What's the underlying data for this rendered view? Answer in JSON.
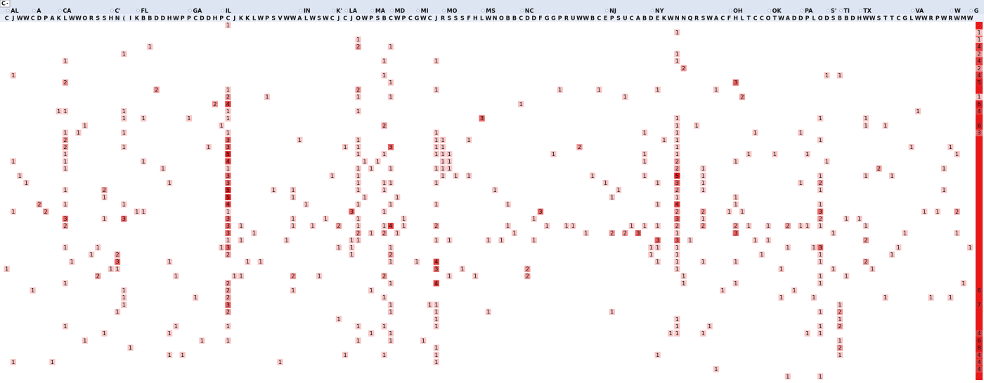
{
  "header": {
    "corner": "C",
    "states": [
      [
        "AL",
        1
      ],
      [
        "A",
        5
      ],
      [
        "CA",
        9
      ],
      [
        "C'",
        17
      ],
      [
        "FL",
        21
      ],
      [
        "GA",
        29
      ],
      [
        "IL",
        34
      ],
      [
        "IN",
        46
      ],
      [
        "K'",
        51
      ],
      [
        "LA",
        53
      ],
      [
        "MA",
        57
      ],
      [
        "MD",
        60
      ],
      [
        "MI",
        64
      ],
      [
        "MO",
        68
      ],
      [
        "MS",
        74
      ],
      [
        "NC",
        80
      ],
      [
        "NJ",
        93
      ],
      [
        "NY",
        100
      ],
      [
        "OH",
        112
      ],
      [
        "OK",
        118
      ],
      [
        "PA",
        123
      ],
      [
        "S'",
        127
      ],
      [
        "TI",
        129
      ],
      [
        "TX",
        132
      ],
      [
        "VA",
        140
      ],
      [
        "W",
        146
      ],
      [
        "G",
        149
      ]
    ],
    "column_letters": "CJWWCDPAKLWWORSSHN(IKBBDDHWPPCDDHPCJKKLWPSVWWALWSWCJCJOWPSBCWPCGWCJRSSSFHLWNOBBCDDFGGPRUWWBCEPSUCABDEKWNNQRSWACFHLTCCOTWADDPLODSBBDHWWSTTCGLWWRPWRWMW"
  },
  "colors": [
    "#ffffff",
    "#f8c6c6",
    "#f29c9c",
    "#ec6464",
    "#e63c3c",
    "#e01e1e",
    "#e01e1e",
    "#e01e1e",
    "#e01e1e"
  ],
  "cells": [
    [
      0,
      34,
      1
    ],
    [
      1,
      103,
      1
    ],
    [
      2,
      54,
      1
    ],
    [
      3,
      22,
      1
    ],
    [
      3,
      54,
      2
    ],
    [
      3,
      59,
      1
    ],
    [
      4,
      18,
      1
    ],
    [
      4,
      103,
      1
    ],
    [
      5,
      9,
      1
    ],
    [
      5,
      58,
      1
    ],
    [
      5,
      66,
      1
    ],
    [
      5,
      103,
      1
    ],
    [
      6,
      104,
      2
    ],
    [
      7,
      1,
      1
    ],
    [
      7,
      58,
      1
    ],
    [
      7,
      126,
      1
    ],
    [
      7,
      128,
      1
    ],
    [
      8,
      9,
      2
    ],
    [
      8,
      59,
      1
    ],
    [
      8,
      112,
      3
    ],
    [
      9,
      23,
      2
    ],
    [
      9,
      34,
      1
    ],
    [
      9,
      54,
      2
    ],
    [
      9,
      66,
      1
    ],
    [
      9,
      85,
      1
    ],
    [
      9,
      91,
      1
    ],
    [
      9,
      100,
      1
    ],
    [
      9,
      109,
      1
    ],
    [
      10,
      34,
      2
    ],
    [
      10,
      40,
      1
    ],
    [
      10,
      54,
      1
    ],
    [
      10,
      59,
      1
    ],
    [
      10,
      95,
      1
    ],
    [
      10,
      113,
      2
    ],
    [
      11,
      32,
      2
    ],
    [
      11,
      34,
      4
    ],
    [
      11,
      79,
      1
    ],
    [
      12,
      8,
      1
    ],
    [
      12,
      9,
      1
    ],
    [
      12,
      18,
      1
    ],
    [
      12,
      34,
      1
    ],
    [
      12,
      54,
      1
    ],
    [
      12,
      140,
      1
    ],
    [
      13,
      18,
      1
    ],
    [
      13,
      21,
      1
    ],
    [
      13,
      28,
      1
    ],
    [
      13,
      34,
      1
    ],
    [
      13,
      73,
      3
    ],
    [
      13,
      103,
      1
    ],
    [
      13,
      125,
      1
    ],
    [
      13,
      132,
      1
    ],
    [
      14,
      12,
      1
    ],
    [
      14,
      33,
      1
    ],
    [
      14,
      58,
      2
    ],
    [
      14,
      103,
      1
    ],
    [
      14,
      106,
      1
    ],
    [
      14,
      132,
      1
    ],
    [
      14,
      135,
      1
    ],
    [
      15,
      9,
      1
    ],
    [
      15,
      11,
      1
    ],
    [
      15,
      18,
      1
    ],
    [
      15,
      34,
      1
    ],
    [
      15,
      66,
      1
    ],
    [
      15,
      98,
      1
    ],
    [
      15,
      103,
      1
    ],
    [
      15,
      115,
      1
    ],
    [
      15,
      122,
      1
    ],
    [
      16,
      9,
      2
    ],
    [
      16,
      34,
      3
    ],
    [
      16,
      45,
      1
    ],
    [
      16,
      54,
      1
    ],
    [
      16,
      66,
      1
    ],
    [
      16,
      67,
      1
    ],
    [
      16,
      71,
      1
    ],
    [
      16,
      101,
      1
    ],
    [
      16,
      103,
      1
    ],
    [
      16,
      125,
      1
    ],
    [
      17,
      9,
      2
    ],
    [
      17,
      18,
      1
    ],
    [
      17,
      31,
      1
    ],
    [
      17,
      34,
      3
    ],
    [
      17,
      52,
      1
    ],
    [
      17,
      54,
      1
    ],
    [
      17,
      59,
      3
    ],
    [
      17,
      66,
      1
    ],
    [
      17,
      67,
      1
    ],
    [
      17,
      88,
      2
    ],
    [
      17,
      103,
      1
    ],
    [
      17,
      139,
      1
    ],
    [
      17,
      145,
      1
    ],
    [
      18,
      9,
      1
    ],
    [
      18,
      34,
      5
    ],
    [
      18,
      54,
      1
    ],
    [
      18,
      58,
      1
    ],
    [
      18,
      66,
      1
    ],
    [
      18,
      67,
      1
    ],
    [
      18,
      68,
      1
    ],
    [
      18,
      84,
      1
    ],
    [
      18,
      98,
      1
    ],
    [
      18,
      103,
      1
    ],
    [
      18,
      114,
      1
    ],
    [
      18,
      118,
      1
    ],
    [
      18,
      123,
      1
    ],
    [
      18,
      146,
      1
    ],
    [
      19,
      1,
      1
    ],
    [
      19,
      9,
      1
    ],
    [
      19,
      21,
      1
    ],
    [
      19,
      34,
      4
    ],
    [
      19,
      55,
      1
    ],
    [
      19,
      57,
      1
    ],
    [
      19,
      67,
      1
    ],
    [
      19,
      68,
      1
    ],
    [
      19,
      98,
      1
    ],
    [
      19,
      103,
      2
    ],
    [
      19,
      112,
      1
    ],
    [
      19,
      126,
      1
    ],
    [
      20,
      9,
      1
    ],
    [
      20,
      24,
      1
    ],
    [
      20,
      34,
      1
    ],
    [
      20,
      54,
      1
    ],
    [
      20,
      56,
      1
    ],
    [
      20,
      59,
      1
    ],
    [
      20,
      66,
      1
    ],
    [
      20,
      67,
      1
    ],
    [
      20,
      68,
      1
    ],
    [
      20,
      103,
      2
    ],
    [
      20,
      107,
      1
    ],
    [
      20,
      134,
      2
    ],
    [
      20,
      144,
      1
    ],
    [
      21,
      2,
      1
    ],
    [
      21,
      34,
      3
    ],
    [
      21,
      50,
      1
    ],
    [
      21,
      54,
      1
    ],
    [
      21,
      67,
      1
    ],
    [
      21,
      69,
      1
    ],
    [
      21,
      71,
      1
    ],
    [
      21,
      90,
      1
    ],
    [
      21,
      98,
      1
    ],
    [
      21,
      103,
      5
    ],
    [
      21,
      107,
      1
    ],
    [
      21,
      125,
      1
    ],
    [
      21,
      132,
      1
    ],
    [
      21,
      136,
      1
    ],
    [
      22,
      3,
      1
    ],
    [
      22,
      25,
      1
    ],
    [
      22,
      34,
      3
    ],
    [
      22,
      54,
      1
    ],
    [
      22,
      58,
      1
    ],
    [
      22,
      59,
      1
    ],
    [
      22,
      66,
      1
    ],
    [
      22,
      92,
      1
    ],
    [
      22,
      100,
      1
    ],
    [
      22,
      103,
      3
    ],
    [
      22,
      107,
      1
    ],
    [
      22,
      122,
      1
    ],
    [
      22,
      125,
      2
    ],
    [
      23,
      9,
      1
    ],
    [
      23,
      15,
      2
    ],
    [
      23,
      34,
      5
    ],
    [
      23,
      41,
      1
    ],
    [
      23,
      44,
      1
    ],
    [
      23,
      54,
      1
    ],
    [
      23,
      58,
      1
    ],
    [
      23,
      75,
      1
    ],
    [
      23,
      94,
      1
    ],
    [
      23,
      103,
      2
    ],
    [
      23,
      107,
      1
    ],
    [
      23,
      125,
      1
    ],
    [
      23,
      144,
      1
    ],
    [
      24,
      15,
      1
    ],
    [
      24,
      34,
      5
    ],
    [
      24,
      44,
      1
    ],
    [
      24,
      55,
      1
    ],
    [
      24,
      60,
      1
    ],
    [
      24,
      93,
      1
    ],
    [
      24,
      103,
      1
    ],
    [
      24,
      112,
      1
    ],
    [
      25,
      5,
      2
    ],
    [
      25,
      9,
      1
    ],
    [
      25,
      18,
      1
    ],
    [
      25,
      34,
      4
    ],
    [
      25,
      46,
      1
    ],
    [
      25,
      54,
      1
    ],
    [
      25,
      59,
      1
    ],
    [
      25,
      66,
      1
    ],
    [
      25,
      77,
      1
    ],
    [
      25,
      100,
      1
    ],
    [
      25,
      103,
      4
    ],
    [
      25,
      112,
      1
    ],
    [
      25,
      125,
      1
    ],
    [
      26,
      1,
      1
    ],
    [
      26,
      6,
      2
    ],
    [
      26,
      20,
      1
    ],
    [
      26,
      21,
      1
    ],
    [
      26,
      34,
      1
    ],
    [
      26,
      53,
      3
    ],
    [
      26,
      58,
      1
    ],
    [
      26,
      82,
      3
    ],
    [
      26,
      103,
      2
    ],
    [
      26,
      107,
      2
    ],
    [
      26,
      111,
      1
    ],
    [
      26,
      113,
      1
    ],
    [
      26,
      125,
      3
    ],
    [
      26,
      141,
      1
    ],
    [
      26,
      143,
      1
    ],
    [
      26,
      146,
      2
    ],
    [
      27,
      9,
      3
    ],
    [
      27,
      15,
      1
    ],
    [
      27,
      18,
      3
    ],
    [
      27,
      34,
      3
    ],
    [
      27,
      44,
      1
    ],
    [
      27,
      49,
      1
    ],
    [
      27,
      54,
      1
    ],
    [
      27,
      61,
      1
    ],
    [
      27,
      81,
      1
    ],
    [
      27,
      103,
      3
    ],
    [
      27,
      107,
      1
    ],
    [
      27,
      125,
      2
    ],
    [
      27,
      129,
      1
    ],
    [
      27,
      131,
      1
    ],
    [
      28,
      9,
      2
    ],
    [
      28,
      34,
      3
    ],
    [
      28,
      36,
      1
    ],
    [
      28,
      44,
      1
    ],
    [
      28,
      47,
      1
    ],
    [
      28,
      51,
      2
    ],
    [
      28,
      54,
      1
    ],
    [
      28,
      58,
      1
    ],
    [
      28,
      59,
      4
    ],
    [
      28,
      61,
      1
    ],
    [
      28,
      66,
      2
    ],
    [
      28,
      77,
      1
    ],
    [
      28,
      83,
      1
    ],
    [
      28,
      86,
      1
    ],
    [
      28,
      87,
      1
    ],
    [
      28,
      96,
      1
    ],
    [
      28,
      98,
      1
    ],
    [
      28,
      100,
      1
    ],
    [
      28,
      103,
      2
    ],
    [
      28,
      107,
      2
    ],
    [
      28,
      112,
      2
    ],
    [
      28,
      114,
      1
    ],
    [
      28,
      117,
      1
    ],
    [
      28,
      120,
      2
    ],
    [
      28,
      122,
      1
    ],
    [
      28,
      123,
      1
    ],
    [
      28,
      125,
      1
    ],
    [
      28,
      132,
      1
    ],
    [
      29,
      34,
      3
    ],
    [
      29,
      38,
      1
    ],
    [
      29,
      54,
      2
    ],
    [
      29,
      56,
      1
    ],
    [
      29,
      58,
      2
    ],
    [
      29,
      60,
      1
    ],
    [
      29,
      78,
      1
    ],
    [
      29,
      89,
      1
    ],
    [
      29,
      93,
      2
    ],
    [
      29,
      95,
      2
    ],
    [
      29,
      97,
      3
    ],
    [
      29,
      103,
      1
    ],
    [
      29,
      112,
      3
    ],
    [
      29,
      127,
      1
    ],
    [
      29,
      138,
      1
    ],
    [
      29,
      146,
      1
    ],
    [
      30,
      34,
      1
    ],
    [
      30,
      36,
      1
    ],
    [
      30,
      43,
      1
    ],
    [
      30,
      53,
      1
    ],
    [
      30,
      54,
      1
    ],
    [
      30,
      66,
      1
    ],
    [
      30,
      68,
      1
    ],
    [
      30,
      74,
      1
    ],
    [
      30,
      76,
      1
    ],
    [
      30,
      81,
      1
    ],
    [
      30,
      100,
      3
    ],
    [
      30,
      103,
      3
    ],
    [
      30,
      105,
      1
    ],
    [
      30,
      115,
      1
    ],
    [
      30,
      117,
      1
    ],
    [
      30,
      132,
      2
    ],
    [
      31,
      9,
      1
    ],
    [
      31,
      14,
      1
    ],
    [
      31,
      33,
      1
    ],
    [
      31,
      34,
      3
    ],
    [
      31,
      51,
      1
    ],
    [
      31,
      53,
      1
    ],
    [
      31,
      59,
      1
    ],
    [
      31,
      99,
      1
    ],
    [
      31,
      100,
      1
    ],
    [
      31,
      103,
      1
    ],
    [
      31,
      120,
      1
    ],
    [
      31,
      124,
      1
    ],
    [
      31,
      125,
      3
    ],
    [
      31,
      137,
      1
    ],
    [
      31,
      148,
      1
    ],
    [
      32,
      13,
      1
    ],
    [
      32,
      17,
      2
    ],
    [
      32,
      34,
      2
    ],
    [
      32,
      53,
      1
    ],
    [
      32,
      59,
      2
    ],
    [
      32,
      99,
      1
    ],
    [
      32,
      103,
      1
    ],
    [
      32,
      116,
      1
    ],
    [
      32,
      125,
      1
    ],
    [
      32,
      136,
      1
    ],
    [
      33,
      10,
      1
    ],
    [
      33,
      17,
      3
    ],
    [
      33,
      25,
      1
    ],
    [
      33,
      37,
      1
    ],
    [
      33,
      39,
      1
    ],
    [
      33,
      59,
      1
    ],
    [
      33,
      63,
      1
    ],
    [
      33,
      66,
      4
    ],
    [
      33,
      100,
      1
    ],
    [
      33,
      103,
      1
    ],
    [
      33,
      107,
      1
    ],
    [
      33,
      112,
      1
    ],
    [
      33,
      125,
      1
    ],
    [
      33,
      132,
      2
    ],
    [
      34,
      0,
      1
    ],
    [
      34,
      16,
      1
    ],
    [
      34,
      17,
      1
    ],
    [
      34,
      66,
      3
    ],
    [
      34,
      70,
      1
    ],
    [
      34,
      80,
      2
    ],
    [
      34,
      103,
      1
    ],
    [
      34,
      119,
      1
    ],
    [
      34,
      127,
      1
    ],
    [
      34,
      133,
      1
    ],
    [
      35,
      14,
      2
    ],
    [
      35,
      26,
      1
    ],
    [
      35,
      35,
      1
    ],
    [
      35,
      36,
      1
    ],
    [
      35,
      44,
      2
    ],
    [
      35,
      48,
      1
    ],
    [
      35,
      58,
      2
    ],
    [
      35,
      68,
      1
    ],
    [
      35,
      72,
      1
    ],
    [
      35,
      80,
      2
    ],
    [
      35,
      104,
      1
    ],
    [
      35,
      125,
      1
    ],
    [
      35,
      129,
      1
    ],
    [
      36,
      9,
      1
    ],
    [
      36,
      34,
      2
    ],
    [
      36,
      59,
      1
    ],
    [
      36,
      66,
      4
    ],
    [
      36,
      104,
      1
    ],
    [
      36,
      112,
      1
    ],
    [
      36,
      125,
      1
    ],
    [
      36,
      147,
      1
    ],
    [
      37,
      4,
      1
    ],
    [
      37,
      18,
      1
    ],
    [
      37,
      34,
      2
    ],
    [
      37,
      44,
      1
    ],
    [
      37,
      56,
      1
    ],
    [
      37,
      110,
      1
    ],
    [
      37,
      121,
      1
    ],
    [
      38,
      18,
      1
    ],
    [
      38,
      29,
      1
    ],
    [
      38,
      34,
      2
    ],
    [
      38,
      58,
      1
    ],
    [
      38,
      119,
      1
    ],
    [
      38,
      124,
      1
    ],
    [
      38,
      135,
      1
    ],
    [
      38,
      142,
      1
    ],
    [
      38,
      145,
      1
    ],
    [
      39,
      18,
      1
    ],
    [
      39,
      34,
      3
    ],
    [
      39,
      59,
      1
    ],
    [
      39,
      65,
      1
    ],
    [
      39,
      66,
      1
    ],
    [
      39,
      128,
      1
    ],
    [
      40,
      17,
      1
    ],
    [
      40,
      34,
      2
    ],
    [
      40,
      59,
      1
    ],
    [
      40,
      66,
      1
    ],
    [
      40,
      74,
      1
    ],
    [
      40,
      93,
      1
    ],
    [
      40,
      125,
      1
    ],
    [
      40,
      128,
      2
    ],
    [
      41,
      51,
      1
    ],
    [
      41,
      66,
      1
    ],
    [
      41,
      103,
      1
    ],
    [
      41,
      128,
      1
    ],
    [
      42,
      9,
      1
    ],
    [
      42,
      26,
      1
    ],
    [
      42,
      34,
      1
    ],
    [
      42,
      54,
      1
    ],
    [
      42,
      58,
      1
    ],
    [
      42,
      66,
      1
    ],
    [
      42,
      103,
      1
    ],
    [
      42,
      108,
      1
    ],
    [
      42,
      125,
      1
    ],
    [
      42,
      128,
      2
    ],
    [
      43,
      15,
      1
    ],
    [
      43,
      25,
      1
    ],
    [
      43,
      56,
      1
    ],
    [
      43,
      59,
      1
    ],
    [
      43,
      102,
      1
    ],
    [
      43,
      103,
      1
    ],
    [
      43,
      107,
      1
    ],
    [
      43,
      123,
      1
    ],
    [
      43,
      125,
      1
    ],
    [
      44,
      12,
      1
    ],
    [
      44,
      30,
      1
    ],
    [
      44,
      34,
      1
    ],
    [
      44,
      54,
      1
    ],
    [
      44,
      59,
      1
    ],
    [
      44,
      64,
      1
    ],
    [
      44,
      128,
      1
    ],
    [
      45,
      19,
      1
    ],
    [
      45,
      66,
      1
    ],
    [
      45,
      128,
      2
    ],
    [
      46,
      25,
      1
    ],
    [
      46,
      27,
      1
    ],
    [
      46,
      52,
      1
    ],
    [
      46,
      58,
      1
    ],
    [
      46,
      66,
      1
    ],
    [
      46,
      100,
      1
    ],
    [
      46,
      128,
      1
    ],
    [
      47,
      1,
      1
    ],
    [
      47,
      7,
      1
    ],
    [
      47,
      42,
      1
    ],
    [
      47,
      66,
      1
    ],
    [
      48,
      109,
      1
    ],
    [
      49,
      120,
      1
    ],
    [
      49,
      125,
      1
    ]
  ],
  "totals": [
    null,
    1,
    1,
    4,
    2,
    4,
    2,
    4,
    5,
    null,
    1,
    6,
    4,
    null,
    6,
    3,
    null,
    null,
    null,
    null,
    null,
    null,
    null,
    null,
    null,
    null,
    null,
    null,
    null,
    null,
    null,
    null,
    null,
    null,
    null,
    null,
    null,
    6,
    null,
    7,
    null,
    null,
    null,
    4,
    6,
    8,
    4,
    4,
    4,
    null
  ]
}
